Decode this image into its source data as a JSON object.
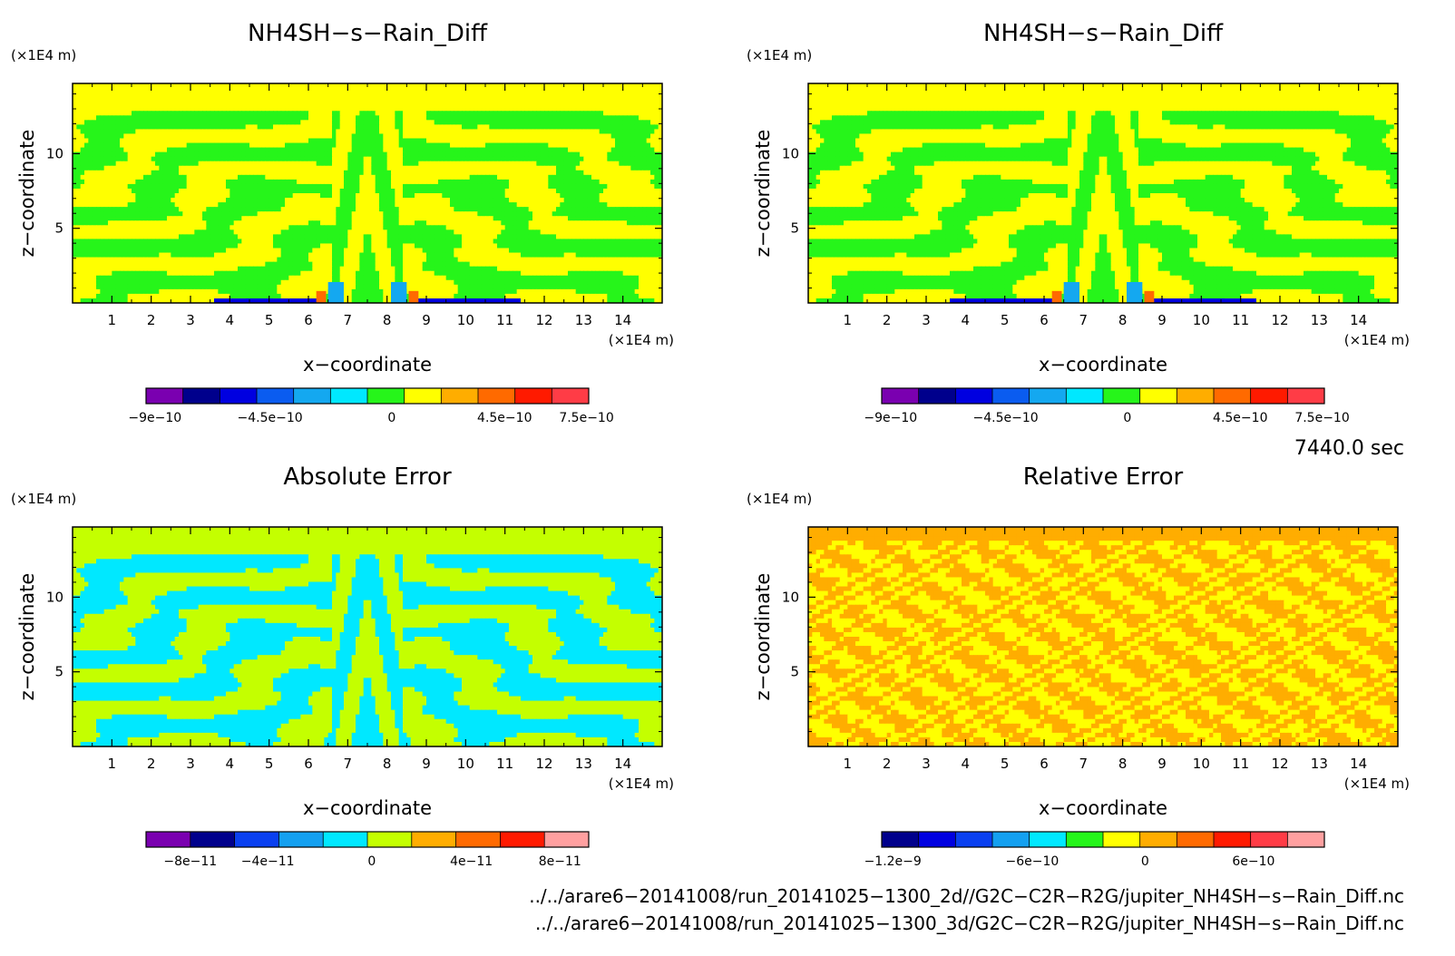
{
  "chart_data": [
    {
      "type": "heatmap",
      "title": "NH4SH−s−Rain_Diff",
      "xlabel": "x−coordinate",
      "ylabel": "z−coordinate",
      "x_unit": "(×1E4 m)",
      "y_unit": "(×1E4 m)",
      "xlim": [
        0,
        15
      ],
      "ylim": [
        0,
        14.7
      ],
      "x_ticks": [
        "1",
        "2",
        "3",
        "4",
        "5",
        "6",
        "7",
        "8",
        "9",
        "10",
        "11",
        "12",
        "13",
        "14"
      ],
      "y_ticks": [
        "5",
        "10"
      ],
      "colorbar": {
        "levels": 11,
        "colors": [
          "#7a00b0",
          "#00008c",
          "#0000e0",
          "#0a5cf0",
          "#14a8f0",
          "#00e8ff",
          "#26f51a",
          "#ffff00",
          "#ffad00",
          "#ff6a00",
          "#ff1a00",
          "#ff3c46"
        ],
        "labels": [
          "−9e−10",
          "−4.5e−10",
          "0",
          "4.5e−10",
          "7.5e−10"
        ],
        "label_values": [
          -9e-10,
          -4.5e-10,
          0,
          4.5e-10,
          7.5e-10
        ]
      },
      "pattern": "swirl",
      "palette": [
        "#26f51a",
        "#ffff00"
      ],
      "top_band": "#ffff00",
      "min_value": -9e-10,
      "max_value": 7.5e-10
    },
    {
      "type": "heatmap",
      "title": "NH4SH−s−Rain_Diff",
      "xlabel": "x−coordinate",
      "ylabel": "z−coordinate",
      "x_unit": "(×1E4 m)",
      "y_unit": "(×1E4 m)",
      "xlim": [
        0,
        15
      ],
      "ylim": [
        0,
        14.7
      ],
      "x_ticks": [
        "1",
        "2",
        "3",
        "4",
        "5",
        "6",
        "7",
        "8",
        "9",
        "10",
        "11",
        "12",
        "13",
        "14"
      ],
      "y_ticks": [
        "5",
        "10"
      ],
      "colorbar": {
        "levels": 11,
        "colors": [
          "#7a00b0",
          "#00008c",
          "#0000e0",
          "#0a5cf0",
          "#14a8f0",
          "#00e8ff",
          "#26f51a",
          "#ffff00",
          "#ffad00",
          "#ff6a00",
          "#ff1a00",
          "#ff3c46"
        ],
        "labels": [
          "−9e−10",
          "−4.5e−10",
          "0",
          "4.5e−10",
          "7.5e−10"
        ],
        "label_values": [
          -9e-10,
          -4.5e-10,
          0,
          4.5e-10,
          7.5e-10
        ]
      },
      "pattern": "swirl",
      "palette": [
        "#26f51a",
        "#ffff00"
      ],
      "top_band": "#ffff00",
      "min_value": -9e-10,
      "max_value": 7.5e-10
    },
    {
      "type": "heatmap",
      "title": "Absolute Error",
      "xlabel": "x−coordinate",
      "ylabel": "z−coordinate",
      "x_unit": "(×1E4 m)",
      "y_unit": "(×1E4 m)",
      "xlim": [
        0,
        15
      ],
      "ylim": [
        0,
        14.7
      ],
      "x_ticks": [
        "1",
        "2",
        "3",
        "4",
        "5",
        "6",
        "7",
        "8",
        "9",
        "10",
        "11",
        "12",
        "13",
        "14"
      ],
      "y_ticks": [
        "5",
        "10"
      ],
      "colorbar": {
        "levels": 10,
        "colors": [
          "#7a00b0",
          "#00008c",
          "#0a40f0",
          "#14a0f0",
          "#00e8ff",
          "#c4ff00",
          "#ffad00",
          "#ff6a00",
          "#ff1a00",
          "#ffa0a0"
        ],
        "labels": [
          "−8e−11",
          "−4e−11",
          "0",
          "4e−11",
          "8e−11"
        ],
        "label_values": [
          -8e-11,
          -4e-11,
          0,
          4e-11,
          8e-11
        ]
      },
      "pattern": "swirl",
      "palette": [
        "#00e8ff",
        "#c4ff00"
      ],
      "top_band": "#c4ff00"
    },
    {
      "type": "heatmap",
      "title": "Relative Error",
      "xlabel": "x−coordinate",
      "ylabel": "z−coordinate",
      "x_unit": "(×1E4 m)",
      "y_unit": "(×1E4 m)",
      "xlim": [
        0,
        15
      ],
      "ylim": [
        0,
        14.7
      ],
      "x_ticks": [
        "1",
        "2",
        "3",
        "4",
        "5",
        "6",
        "7",
        "8",
        "9",
        "10",
        "11",
        "12",
        "13",
        "14"
      ],
      "y_ticks": [
        "5",
        "10"
      ],
      "colorbar": {
        "levels": 12,
        "colors": [
          "#00008c",
          "#0000e0",
          "#0a40f0",
          "#14a0f0",
          "#00e8ff",
          "#26f51a",
          "#ffff00",
          "#ffad00",
          "#ff6a00",
          "#ff1a00",
          "#ff3c46",
          "#ffa0a0"
        ],
        "labels": [
          "−1.2e−9",
          "−6e−10",
          "0",
          "6e−10"
        ],
        "label_values": [
          -1.2e-09,
          -6e-10,
          0,
          6e-10
        ]
      },
      "pattern": "noise",
      "palette": [
        "#ffad00",
        "#ffff00"
      ],
      "top_band": "#ffad00"
    }
  ],
  "timestamp": "7440.0 sec",
  "footer": [
    "../../arare6−20141008/run_20141025−1300_2d//G2C−C2R−R2G/jupiter_NH4SH−s−Rain_Diff.nc",
    "../../arare6−20141008/run_20141025−1300_3d/G2C−C2R−R2G/jupiter_NH4SH−s−Rain_Diff.nc"
  ]
}
